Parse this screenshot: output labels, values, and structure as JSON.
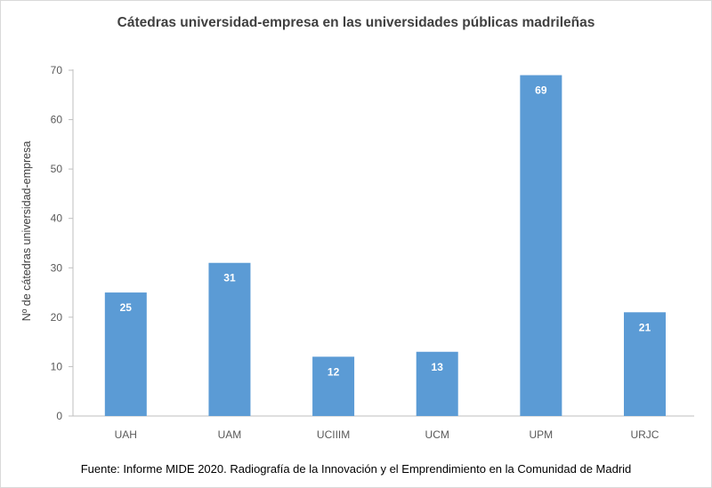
{
  "chart_data": {
    "type": "bar",
    "title": "Cátedras universidad-empresa en las universidades públicas madrileñas",
    "xlabel": "",
    "ylabel": "Nº de cátedras universidad-empresa",
    "categories": [
      "UAH",
      "UAM",
      "UCIIIM",
      "UCM",
      "UPM",
      "URJC"
    ],
    "values": [
      25,
      31,
      12,
      13,
      69,
      21
    ],
    "ylim": [
      0,
      70
    ],
    "yticks": [
      0,
      10,
      20,
      30,
      40,
      50,
      60,
      70
    ],
    "grid": false,
    "legend": "none",
    "data_labels": true,
    "bar_color": "#5b9bd5",
    "source": "Fuente:  Informe MIDE 2020. Radiografía de la Innovación y el Emprendimiento  en  la Comunidad de Madrid"
  }
}
